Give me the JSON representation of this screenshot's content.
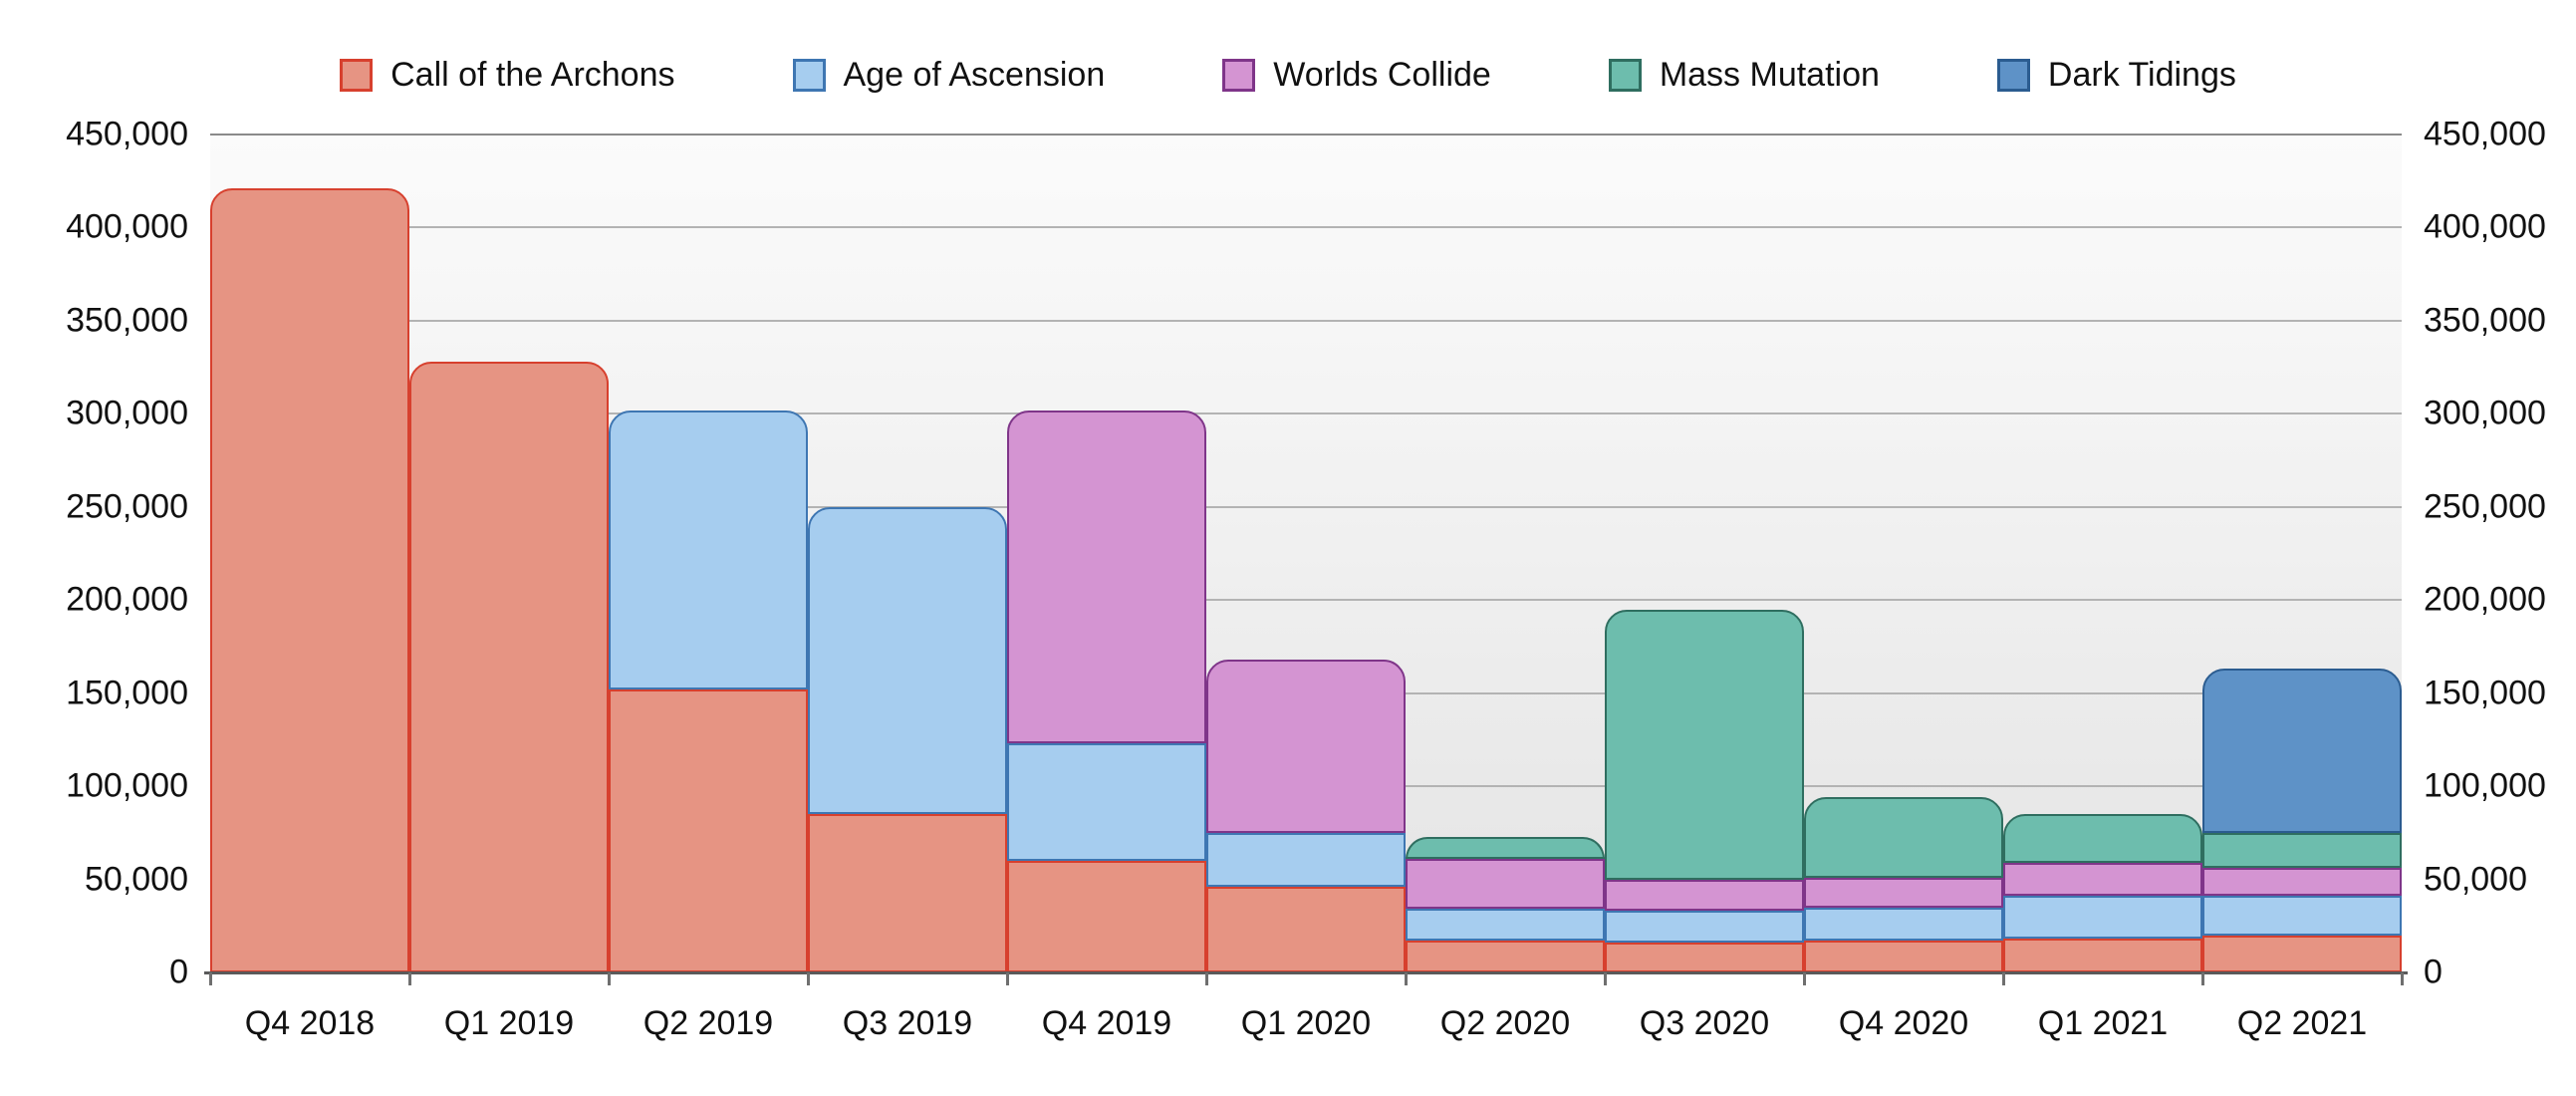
{
  "chart_data": {
    "type": "bar",
    "stacked": true,
    "title": "",
    "categories": [
      "Q4 2018",
      "Q1 2019",
      "Q2 2019",
      "Q3 2019",
      "Q4 2019",
      "Q1 2020",
      "Q2 2020",
      "Q3 2020",
      "Q4 2020",
      "Q1 2021",
      "Q2 2021"
    ],
    "series": [
      {
        "name": "Call of the Archons",
        "fill": "#E69483",
        "stroke": "#D7402E",
        "values": [
          421000,
          328000,
          152000,
          85000,
          60000,
          46000,
          17000,
          16000,
          17000,
          18000,
          20000
        ]
      },
      {
        "name": "Age of Ascension",
        "fill": "#A6CDEF",
        "stroke": "#3E76B2",
        "values": [
          0,
          0,
          150000,
          165000,
          63000,
          29000,
          17000,
          17000,
          18000,
          23000,
          21000
        ]
      },
      {
        "name": "Worlds Collide",
        "fill": "#D494D2",
        "stroke": "#7F3589",
        "values": [
          0,
          0,
          0,
          0,
          179000,
          93000,
          27000,
          17000,
          16000,
          18000,
          15000
        ]
      },
      {
        "name": "Mass Mutation",
        "fill": "#6DBDAD",
        "stroke": "#2F6E60",
        "values": [
          0,
          0,
          0,
          0,
          0,
          0,
          12000,
          145000,
          43000,
          26000,
          19000
        ]
      },
      {
        "name": "Dark Tidings",
        "fill": "#5E92C7",
        "stroke": "#2B5C90",
        "values": [
          0,
          0,
          0,
          0,
          0,
          0,
          0,
          0,
          0,
          0,
          88000
        ]
      }
    ],
    "totals": [
      421000,
      328000,
      302000,
      250000,
      302000,
      168000,
      73000,
      195000,
      94000,
      85000,
      163000
    ],
    "ylim": [
      0,
      450000
    ],
    "y_tick_step": 50000,
    "y_tick_labels": [
      "0",
      "50,000",
      "100,000",
      "150,000",
      "200,000",
      "250,000",
      "300,000",
      "350,000",
      "400,000",
      "450,000"
    ],
    "grid": true,
    "legend_position": "top",
    "axis_sides": "both",
    "xlabel": "",
    "ylabel": ""
  },
  "legend": {
    "labels": [
      "Call of the Archons",
      "Age of Ascension",
      "Worlds Collide",
      "Mass Mutation",
      "Dark Tidings"
    ]
  },
  "colors": {
    "gridline": "#b3b3b3",
    "gridline_top": "#8a8a8a",
    "baseline": "#5a5a5a",
    "text": "#111111"
  }
}
